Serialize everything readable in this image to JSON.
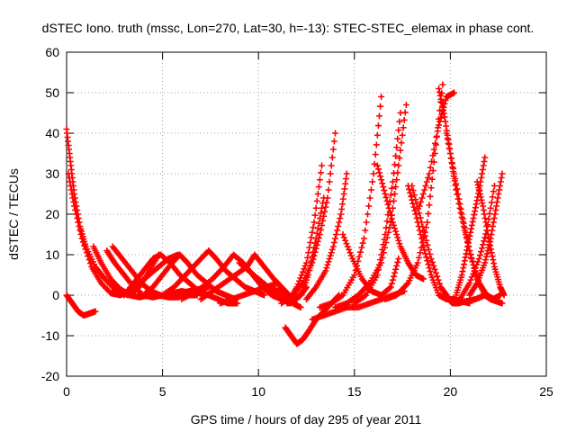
{
  "chart_data": {
    "type": "scatter",
    "title": "dSTEC Iono. truth (mssc, Lon=270, Lat=30, h=-13): STEC-STEC_elemax in phase cont.",
    "xlabel": "GPS time / hours of day 295 of year 2011",
    "ylabel": "dSTEC  / TECUs",
    "xlim": [
      0,
      25
    ],
    "ylim": [
      -20,
      60
    ],
    "xticks": [
      "0",
      "5",
      "10",
      "15",
      "20",
      "25"
    ],
    "yticks": [
      "-20",
      "-10",
      "0",
      "10",
      "20",
      "30",
      "40",
      "50",
      "60"
    ],
    "grid": true,
    "marker": "+",
    "color": "#ff0000",
    "series": [
      {
        "x": [
          0.0,
          0.2,
          0.4,
          0.7,
          1.0,
          1.5,
          2.0,
          2.6,
          3.2,
          3.8,
          4.3,
          4.8
        ],
        "y": [
          41,
          33,
          25,
          17,
          12,
          7,
          4,
          1,
          0,
          2,
          6,
          10
        ]
      },
      {
        "x": [
          0.0,
          0.3,
          0.6,
          0.9,
          1.2,
          1.5
        ],
        "y": [
          0,
          -2,
          -4,
          -5,
          -4.5,
          -4
        ]
      },
      {
        "x": [
          0.1,
          0.4,
          0.8,
          1.3,
          1.8,
          2.3,
          2.8,
          3.3,
          3.8,
          4.3,
          4.8,
          5.3,
          5.8
        ],
        "y": [
          30,
          22,
          14,
          7,
          3,
          0.5,
          0,
          1,
          3,
          5,
          7,
          9,
          10
        ]
      },
      {
        "x": [
          1.4,
          1.8,
          2.3,
          2.8,
          3.3,
          3.8,
          4.3,
          4.8,
          5.3,
          5.8,
          6.3,
          6.8
        ],
        "y": [
          12,
          8,
          4,
          1.5,
          0,
          -0.5,
          0,
          0,
          -0.5,
          -0.5,
          0,
          0
        ]
      },
      {
        "x": [
          2.1,
          2.5,
          3.0,
          3.5,
          4.0,
          4.5,
          5.0,
          5.5,
          6.0,
          6.5,
          7.0
        ],
        "y": [
          11,
          8,
          5,
          2,
          0,
          -0.5,
          0,
          0.5,
          1,
          0.5,
          0.5
        ]
      },
      {
        "x": [
          2.4,
          2.9,
          3.4,
          3.9,
          4.4,
          4.9,
          5.4,
          5.9,
          6.4,
          6.9,
          7.4
        ],
        "y": [
          12,
          9,
          6,
          3,
          1,
          0,
          0,
          0.5,
          1,
          1.5,
          2
        ]
      },
      {
        "x": [
          3.0,
          3.5,
          4.0,
          4.5,
          4.9,
          5.4,
          5.9,
          6.4,
          6.9,
          7.4,
          7.9,
          8.4,
          8.9
        ],
        "y": [
          0,
          3,
          6,
          9,
          10,
          8,
          5,
          3,
          1,
          0,
          -1,
          -2,
          -2
        ]
      },
      {
        "x": [
          4.0,
          4.5,
          5.0,
          5.5,
          5.9,
          6.3,
          6.8,
          7.3,
          7.8,
          8.3,
          8.8
        ],
        "y": [
          0,
          2,
          5,
          8,
          10,
          8,
          5,
          3,
          1,
          0,
          -1
        ]
      },
      {
        "x": [
          5.0,
          5.6,
          6.2,
          6.8,
          7.4,
          7.8,
          8.3,
          8.8,
          9.3,
          9.8,
          10.3
        ],
        "y": [
          0,
          2,
          5,
          8,
          11,
          9,
          6,
          4,
          2,
          1,
          0
        ]
      },
      {
        "x": [
          6.0,
          6.8,
          7.6,
          8.2,
          8.7,
          9.2,
          9.7,
          10.2,
          10.7,
          11.2,
          11.7
        ],
        "y": [
          -1,
          1,
          4,
          7,
          10,
          8,
          5,
          2,
          0,
          -1,
          -2
        ]
      },
      {
        "x": [
          7.0,
          7.6,
          8.2,
          8.8,
          9.4,
          9.8,
          10.3,
          10.8,
          11.2,
          11.6,
          12.0
        ],
        "y": [
          -1,
          1,
          3,
          5,
          7,
          10,
          7,
          4,
          2,
          0,
          -1
        ]
      },
      {
        "x": [
          8.0,
          8.6,
          9.2,
          9.8,
          10.4,
          11.0,
          11.4,
          11.8,
          12.2
        ],
        "y": [
          -2,
          -1,
          0,
          1,
          2,
          3,
          0,
          -2,
          -3
        ]
      },
      {
        "x": [
          9.0,
          9.5,
          10.0,
          10.5,
          11.0,
          11.3,
          11.6,
          11.9,
          12.2,
          12.5
        ],
        "y": [
          8,
          6,
          4,
          2,
          0,
          -1,
          -2,
          -1,
          0,
          2
        ]
      },
      {
        "x": [
          10.0,
          10.5,
          11.0,
          11.4,
          11.8,
          12.2,
          12.6,
          13.0,
          13.4
        ],
        "y": [
          4,
          2,
          1,
          0,
          -1,
          0,
          5,
          14,
          24
        ]
      },
      {
        "x": [
          11.4,
          11.7,
          12.0,
          12.3,
          12.6,
          13.0,
          13.4,
          13.8,
          14.2
        ],
        "y": [
          -8,
          -10,
          -12,
          -11,
          -9,
          -6,
          -4,
          -2,
          0
        ]
      },
      {
        "x": [
          11.2,
          11.8,
          12.3,
          12.8,
          13.2,
          13.6,
          14.0
        ],
        "y": [
          -2,
          0,
          3,
          8,
          15,
          24,
          40
        ]
      },
      {
        "x": [
          11.5,
          12.0,
          12.5,
          12.9,
          13.3
        ],
        "y": [
          -2,
          2,
          8,
          18,
          32
        ]
      },
      {
        "x": [
          12.5,
          13.0,
          13.5,
          13.9,
          14.3,
          14.6
        ],
        "y": [
          -1,
          2,
          6,
          12,
          20,
          30
        ]
      },
      {
        "x": [
          12.8,
          13.4,
          14.0,
          14.6,
          15.2,
          15.8,
          16.4,
          17.0,
          17.6
        ],
        "y": [
          -6,
          -5,
          -4,
          -3,
          -3,
          -2,
          -1,
          0,
          1
        ]
      },
      {
        "x": [
          13.2,
          13.8,
          14.4,
          15.0,
          15.5,
          16.0,
          16.4
        ],
        "y": [
          -3,
          -2,
          0,
          5,
          14,
          30,
          49
        ]
      },
      {
        "x": [
          14.4,
          14.9,
          15.4,
          15.9,
          16.4,
          16.9,
          17.3
        ],
        "y": [
          15,
          9,
          4,
          1,
          0,
          2,
          9
        ]
      },
      {
        "x": [
          14.0,
          14.6,
          15.2,
          15.8,
          16.4,
          16.9,
          17.3,
          17.7
        ],
        "y": [
          -3,
          -2,
          0,
          3,
          8,
          18,
          32,
          47
        ]
      },
      {
        "x": [
          15.0,
          15.6,
          16.2,
          16.6,
          17.0,
          17.4
        ],
        "y": [
          -2,
          0,
          5,
          15,
          28,
          45
        ]
      },
      {
        "x": [
          16.2,
          16.6,
          17.0,
          17.4,
          17.8,
          18.2,
          18.6
        ],
        "y": [
          32,
          25,
          18,
          12,
          8,
          5,
          4
        ]
      },
      {
        "x": [
          16.6,
          17.2,
          17.8,
          18.3,
          18.8,
          19.2,
          19.6
        ],
        "y": [
          -1,
          0,
          3,
          8,
          18,
          35,
          52
        ]
      },
      {
        "x": [
          17.8,
          18.2,
          18.6,
          19.0,
          19.4,
          19.8,
          20.2,
          20.6,
          21.0
        ],
        "y": [
          27,
          20,
          12,
          5,
          0,
          -1,
          -1,
          -1.5,
          -2
        ]
      },
      {
        "x": [
          18.0,
          18.5,
          19.0,
          19.5,
          19.8,
          20.1,
          20.4,
          20.8,
          21.3,
          21.8
        ],
        "y": [
          27,
          18,
          9,
          2,
          0,
          -2,
          -2,
          -1.5,
          -1,
          0
        ]
      },
      {
        "x": [
          18.4,
          18.9,
          19.4,
          19.8,
          20.2
        ],
        "y": [
          22,
          30,
          42,
          49,
          50
        ]
      },
      {
        "x": [
          19.4,
          19.7,
          20.0,
          20.3,
          20.7,
          21.1,
          21.5,
          21.9,
          22.3
        ],
        "y": [
          51,
          44,
          35,
          26,
          17,
          9,
          3,
          0,
          -1
        ]
      },
      {
        "x": [
          19.8,
          20.2,
          20.6,
          21.0,
          21.4,
          21.8,
          22.2,
          22.6
        ],
        "y": [
          40,
          30,
          20,
          11,
          4,
          0,
          -1,
          0
        ]
      },
      {
        "x": [
          20.3,
          20.6,
          20.9,
          21.2,
          21.5,
          21.8
        ],
        "y": [
          0,
          5,
          12,
          19,
          26,
          34
        ]
      },
      {
        "x": [
          21.0,
          21.4,
          21.8,
          22.1,
          22.4,
          22.7
        ],
        "y": [
          0,
          3,
          8,
          14,
          22,
          30
        ]
      },
      {
        "x": [
          21.4,
          21.7,
          22.0,
          22.3,
          22.6,
          22.8
        ],
        "y": [
          28,
          22,
          14,
          7,
          2,
          0
        ]
      },
      {
        "x": [
          21.8,
          22.1,
          22.4,
          22.7
        ],
        "y": [
          0,
          -1,
          -1.5,
          -2
        ]
      },
      {
        "x": [
          20.5,
          21.0,
          21.5,
          21.9,
          22.3
        ],
        "y": [
          -1,
          3,
          9,
          16,
          27
        ]
      }
    ]
  }
}
